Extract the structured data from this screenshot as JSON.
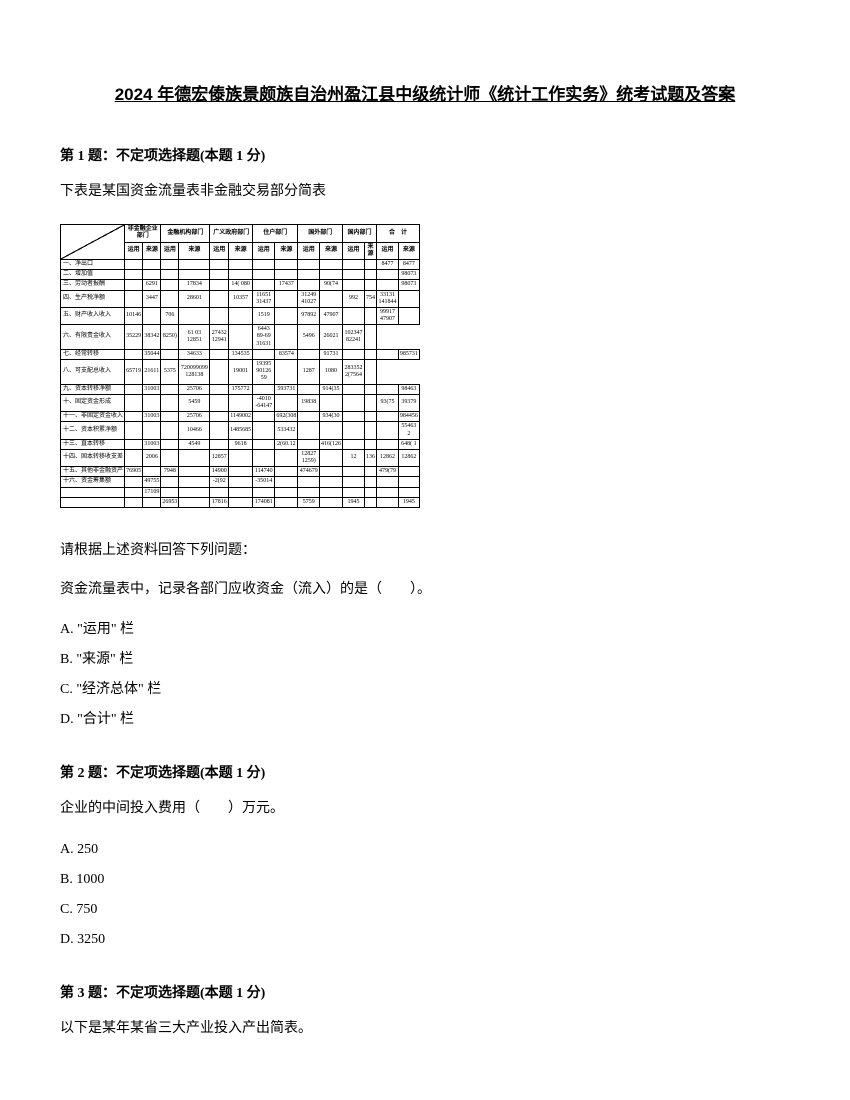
{
  "title": "2024 年德宏傣族景颇族自治州盈江县中级统计师《统计工作实务》统考试题及答案",
  "q1": {
    "header": "第 1 题：不定项选择题(本题 1 分)",
    "intro": "下表是某国资金流量表非金融交易部分简表",
    "prompt": "请根据上述资料回答下列问题：",
    "question": "资金流量表中，记录各部门应收资金（流入）的是（　　）。",
    "options": {
      "a": "A. \"运用\" 栏",
      "b": "B. \"来源\" 栏",
      "c": "C. \"经济总体\" 栏",
      "d": "D. \"合计\" 栏"
    }
  },
  "q2": {
    "header": "第 2 题：不定项选择题(本题 1 分)",
    "question": "企业的中间投入费用（　　）万元。",
    "options": {
      "a": "A. 250",
      "b": "B. 1000",
      "c": "C. 750",
      "d": "D. 3250"
    }
  },
  "q3": {
    "header": "第 3 题：不定项选择题(本题 1 分)",
    "question": "以下是某年某省三大产业投入产出简表。"
  },
  "table": {
    "col_headers": {
      "diag_top": "[机构部门]",
      "diag_bottom": "交易项目",
      "cols": [
        "非金融企业部门",
        "金融机构部门",
        "广义政府部门",
        "住户部门",
        "国外部门",
        "国内部门",
        "合　计"
      ],
      "sub": [
        "运用",
        "来源"
      ]
    },
    "rows": [
      {
        "label": "一、净出口",
        "vals": [
          "",
          "",
          "",
          "",
          "",
          "",
          "",
          "",
          "",
          "",
          "",
          "",
          "8477",
          "8477"
        ]
      },
      {
        "label": "二、增加值",
        "vals": [
          "",
          "",
          "",
          "",
          "",
          "",
          "",
          "",
          "",
          "",
          "",
          "",
          "",
          "98073"
        ]
      },
      {
        "label": "三、劳动者报酬",
        "vals": [
          "",
          "6291",
          "",
          "17834",
          "",
          "14( 080",
          "",
          "17437",
          "",
          "90(74",
          "",
          "",
          "",
          "98073"
        ]
      },
      {
        "label": "四、生产税净额",
        "vals": [
          "",
          "3447",
          "",
          "28601",
          "",
          "10357",
          "11651 31437",
          "",
          "31249 41027",
          "",
          "992",
          "754",
          "33131 141844",
          ""
        ]
      },
      {
        "label": "五、财产收入收入",
        "vals": [
          "10146",
          "",
          "706",
          "",
          "",
          "",
          "1519",
          "",
          "97892",
          "47907",
          "",
          "",
          "99917 47907",
          ""
        ]
      },
      {
        "label": "六、有限责金收入",
        "vals": [
          "35229",
          "38342",
          "8250)",
          "61 03 12851",
          "27432 12941",
          "",
          "6443 89-69 31631",
          "",
          "5496",
          "26021",
          "102347 82241",
          ""
        ]
      },
      {
        "label": "七、经常转移",
        "vals": [
          "",
          "35044",
          "",
          "34633",
          "",
          "134535",
          "",
          "83574",
          "",
          "91731",
          "",
          "",
          "",
          "985731"
        ]
      },
      {
        "label": "八、可支配总收入",
        "vals": [
          "65719",
          "21611",
          "5375",
          "720099099 128138",
          "",
          "19001",
          "19395 90126 59",
          "",
          "1287",
          "1080",
          "283352 2(7564",
          ""
        ]
      },
      {
        "label": "九、资本转移净额",
        "vals": [
          "",
          "31003",
          "",
          "25706",
          "",
          "175772",
          "",
          "593731",
          "",
          "914(35",
          "",
          "",
          "",
          "98463"
        ]
      },
      {
        "label": "十、固定资金形成",
        "vals": [
          "",
          "",
          "",
          "5459",
          "",
          "",
          "-4010 -64147",
          "",
          "19838",
          "",
          "",
          "",
          "93(75",
          "39379"
        ]
      },
      {
        "label": "十一、非固定资金收入",
        "vals": [
          "",
          "31003",
          "",
          "25706",
          "",
          "1149002",
          "",
          "692(308",
          "",
          "934(30",
          "",
          "",
          "",
          "984456"
        ]
      },
      {
        "label": "十二、资本积累净额",
        "vals": [
          "",
          "",
          "",
          "10466",
          "",
          "1485685",
          "",
          "533432",
          "",
          "",
          "",
          "",
          "",
          "55463 2"
        ]
      },
      {
        "label": "十三、直本转移",
        "vals": [
          "",
          "31003",
          "",
          "4549",
          "",
          "9618",
          "",
          "2(60.12",
          "",
          "416(126",
          "",
          "",
          "",
          "648( 1"
        ]
      },
      {
        "label": "十四、固本转移收支差",
        "vals": [
          "",
          "2006",
          "",
          "",
          "12857",
          "",
          "",
          "",
          "12827 1259)",
          "",
          "12",
          "136",
          "12862",
          "12862"
        ]
      },
      {
        "label": "十五、其他非金融资产",
        "vals": [
          "76905",
          "",
          "7948",
          "",
          "14900",
          "",
          "114740",
          "",
          "474679",
          "",
          "",
          "",
          "479(79",
          ""
        ]
      },
      {
        "label": "十六、资金筹集额",
        "vals": [
          "",
          "49755",
          "",
          "",
          "-2(92",
          "",
          "-35014",
          "",
          "",
          "",
          "",
          "",
          "",
          ""
        ]
      },
      {
        "label": "",
        "vals": [
          "",
          "17109",
          "",
          "",
          "",
          "",
          "",
          "",
          "",
          "",
          "",
          "",
          "",
          ""
        ]
      },
      {
        "label": "",
        "vals": [
          "",
          "",
          "26953",
          "",
          "17816",
          "",
          "174081",
          "",
          "5759",
          "",
          "1945",
          "",
          "",
          "1945"
        ]
      }
    ]
  }
}
